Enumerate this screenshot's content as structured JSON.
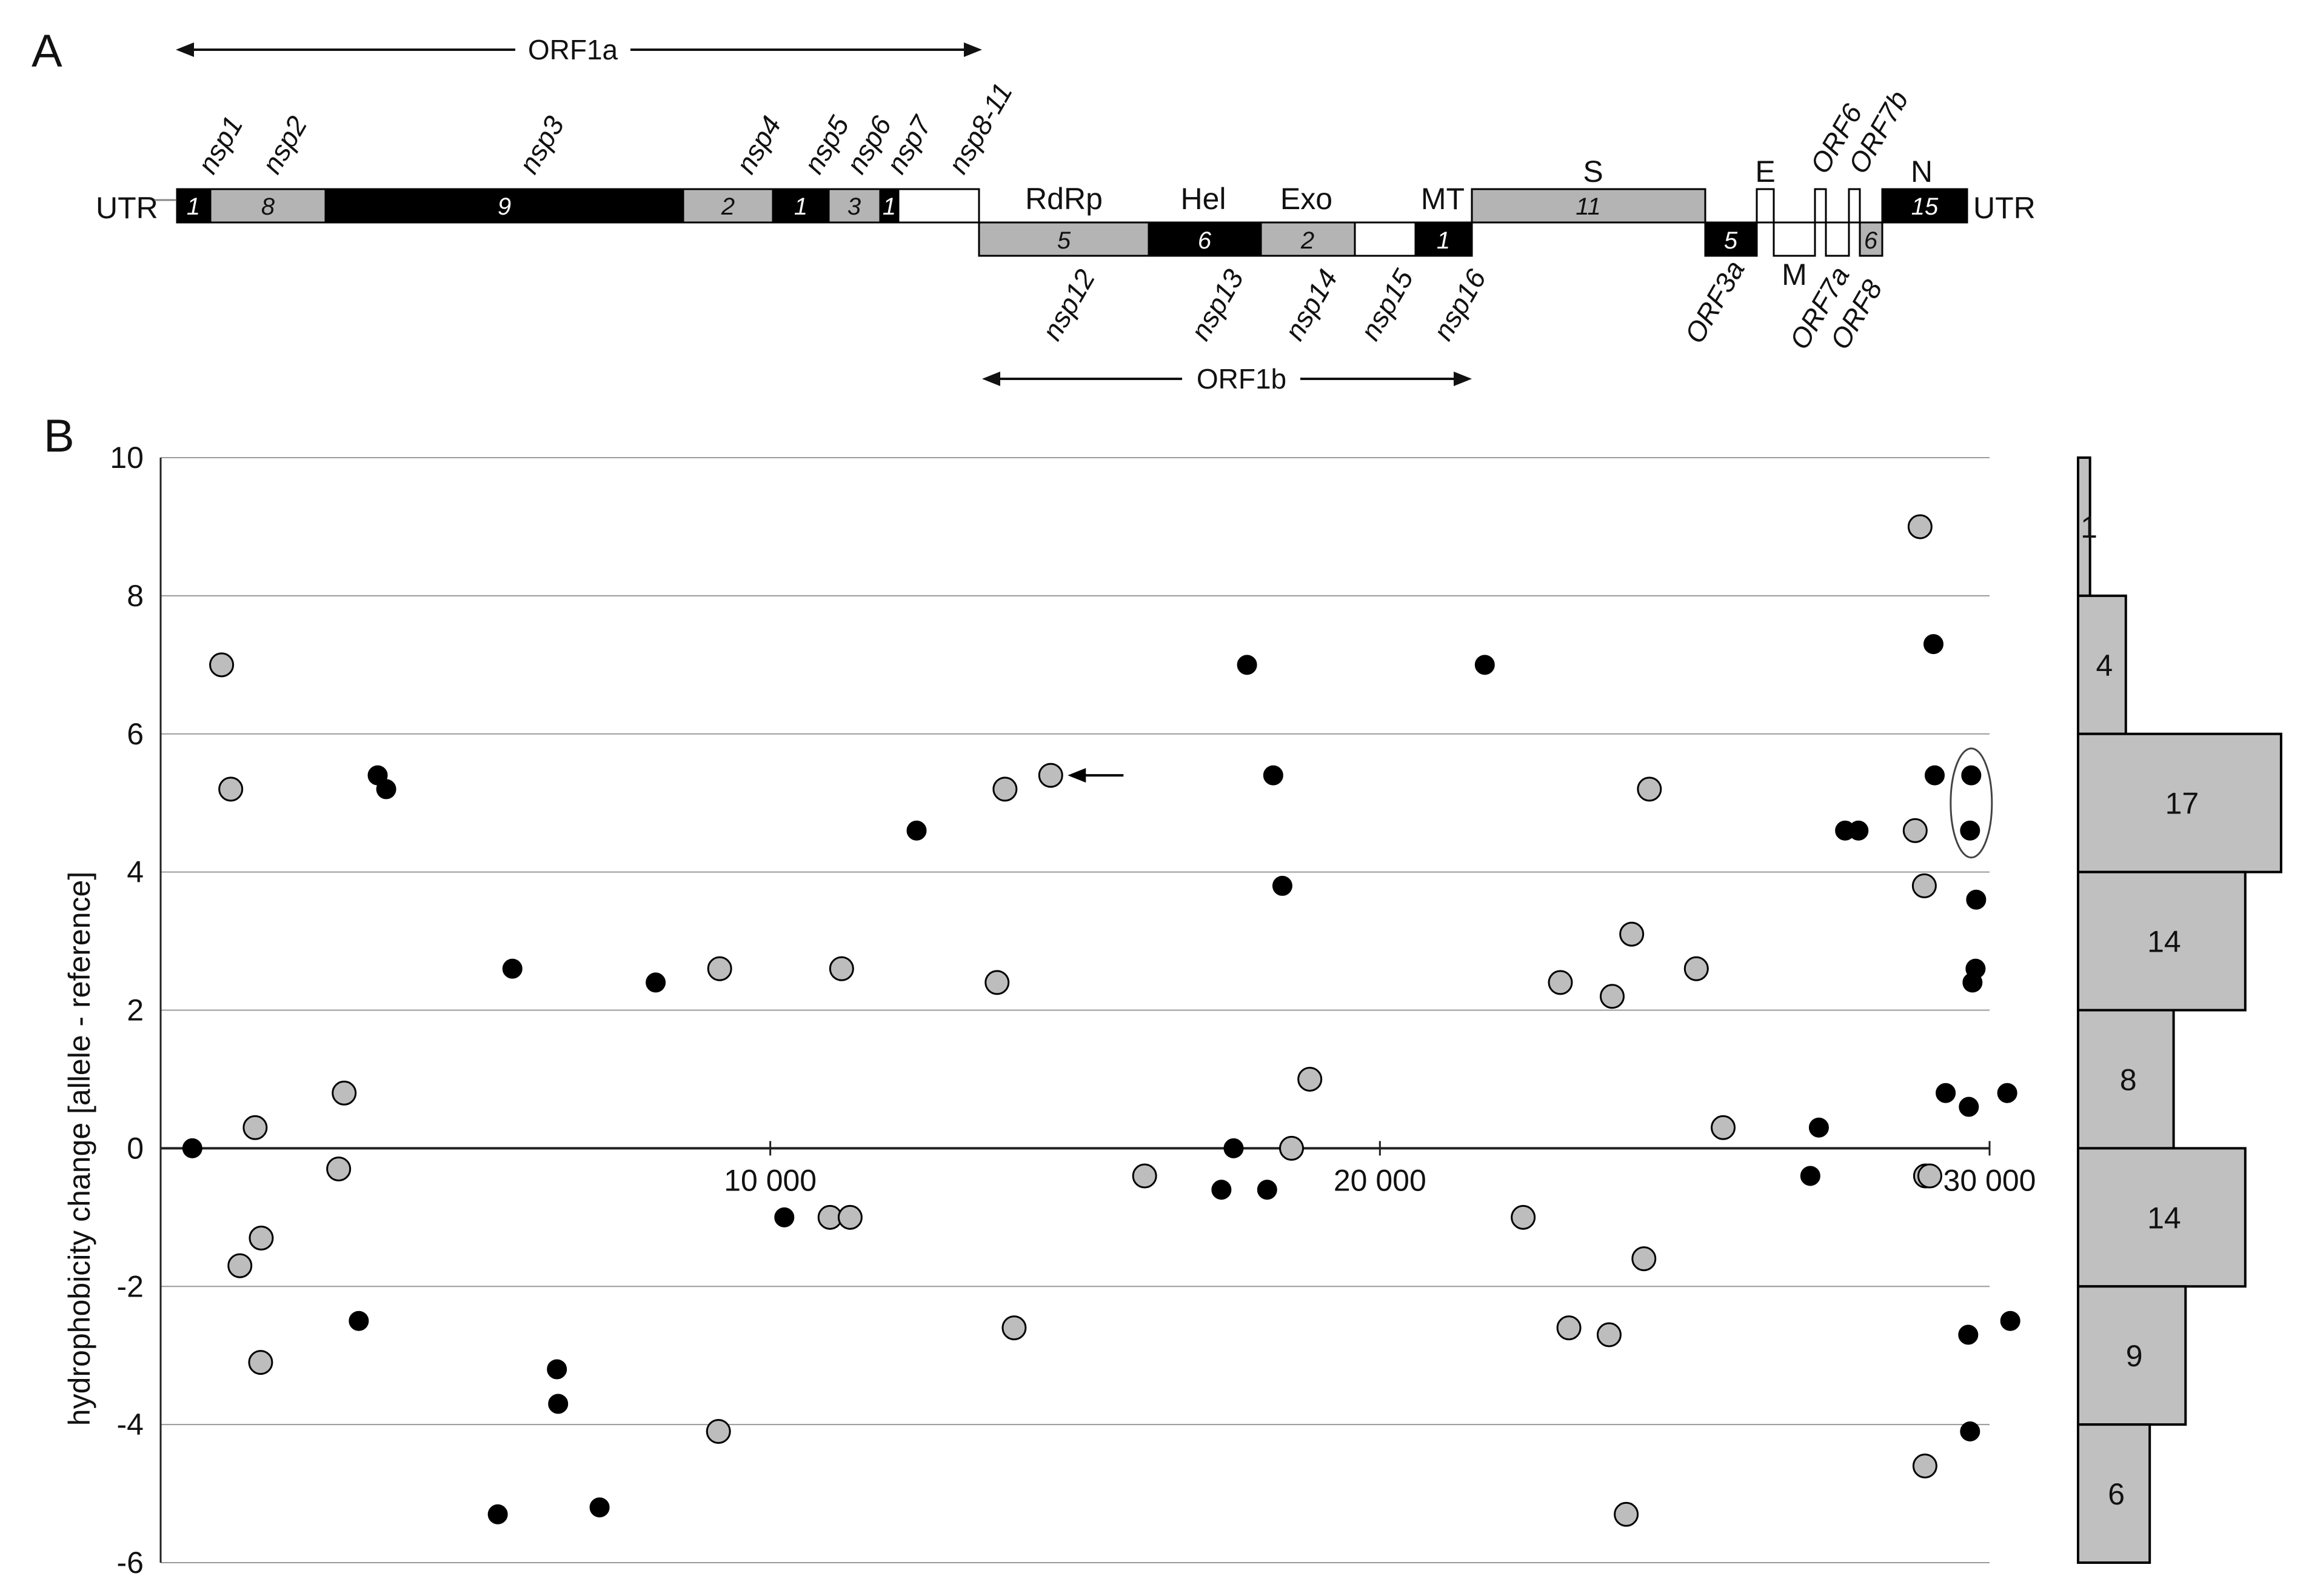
{
  "panel_a": {
    "label": "A",
    "utr_left": "UTR",
    "utr_right": "UTR",
    "orf1a": "ORF1a",
    "orf1b": "ORF1b",
    "segments_top": [
      {
        "name": "nsp1",
        "count": "1",
        "fill": "#000000"
      },
      {
        "name": "nsp2",
        "count": "8",
        "fill": "#b4b4b4"
      },
      {
        "name": "nsp3",
        "count": "9",
        "fill": "#000000"
      },
      {
        "name": "nsp4",
        "count": "2",
        "fill": "#b4b4b4"
      },
      {
        "name": "nsp5",
        "count": "1",
        "fill": "#000000"
      },
      {
        "name": "nsp6",
        "count": "3",
        "fill": "#b4b4b4"
      },
      {
        "name": "nsp7",
        "count": "1",
        "fill": "#000000"
      },
      {
        "name": "nsp8-11",
        "count": "",
        "fill": "#ffffff"
      }
    ],
    "segments_bottom": [
      {
        "name": "nsp12",
        "domain": "RdRp",
        "count": "5",
        "fill": "#b4b4b4"
      },
      {
        "name": "nsp13",
        "domain": "Hel",
        "count": "6",
        "fill": "#000000"
      },
      {
        "name": "nsp14",
        "domain": "Exo",
        "count": "2",
        "fill": "#b4b4b4"
      },
      {
        "name": "nsp15",
        "domain": "",
        "count": "",
        "fill": "#ffffff"
      },
      {
        "name": "nsp16",
        "domain": "MT",
        "count": "1",
        "fill": "#000000"
      }
    ],
    "structural": [
      {
        "name": "S",
        "count": "11",
        "fill": "#b4b4b4"
      },
      {
        "name": "ORF3a",
        "count": "5",
        "fill": "#000000"
      },
      {
        "name": "E",
        "count": "",
        "fill": "#ffffff"
      },
      {
        "name": "M",
        "count": "",
        "fill": "#ffffff"
      },
      {
        "name": "ORF6",
        "count": "",
        "fill": "#ffffff"
      },
      {
        "name": "ORF7a",
        "count": "",
        "fill": "#ffffff"
      },
      {
        "name": "ORF7b",
        "count": "",
        "fill": "#ffffff"
      },
      {
        "name": "ORF8",
        "count": "6",
        "fill": "#b4b4b4"
      },
      {
        "name": "N",
        "count": "15",
        "fill": "#000000"
      }
    ]
  },
  "panel_b": {
    "label": "B"
  },
  "colors": {
    "black_point": "#000000",
    "grey_point": "#bdbdbd",
    "bar": "#c0c0c0",
    "grid": "#9a9a9a"
  },
  "chart_data": {
    "type": "scatter",
    "ylabel": "hydrophobicity change [allele - reference]",
    "xlabel": "",
    "xlim": [
      0,
      30000
    ],
    "ylim": [
      -6,
      10
    ],
    "x_ticks": [
      10000,
      20000,
      30000
    ],
    "x_tick_labels": [
      "10 000",
      "20 000",
      "30 000"
    ],
    "y_ticks": [
      10,
      8,
      6,
      4,
      2,
      0,
      -2,
      -4,
      -6
    ],
    "series": [
      {
        "name": "black",
        "points": [
          [
            520,
            0
          ],
          [
            3250,
            -2.5
          ],
          [
            3560,
            5.4
          ],
          [
            3700,
            5.2
          ],
          [
            5530,
            -5.3
          ],
          [
            5770,
            2.6
          ],
          [
            6500,
            -3.2
          ],
          [
            6520,
            -3.7
          ],
          [
            7200,
            -5.2
          ],
          [
            8120,
            2.4
          ],
          [
            10230,
            -1
          ],
          [
            12400,
            4.6
          ],
          [
            17400,
            -0.6
          ],
          [
            17600,
            0
          ],
          [
            17820,
            7
          ],
          [
            18150,
            -0.6
          ],
          [
            18250,
            5.4
          ],
          [
            18400,
            3.8
          ],
          [
            21720,
            7
          ],
          [
            27060,
            -0.4
          ],
          [
            27200,
            0.3
          ],
          [
            27630,
            4.6
          ],
          [
            27850,
            4.6
          ],
          [
            29080,
            7.3
          ],
          [
            29100,
            5.4
          ],
          [
            29280,
            0.8
          ],
          [
            29660,
            0.6
          ],
          [
            29700,
            5.4
          ],
          [
            29680,
            4.6
          ],
          [
            29650,
            -2.7
          ],
          [
            29680,
            -4.1
          ],
          [
            29780,
            3.6
          ],
          [
            29770,
            2.6
          ],
          [
            29720,
            2.4
          ],
          [
            30290,
            0.8
          ],
          [
            30340,
            -2.5
          ]
        ]
      },
      {
        "name": "grey",
        "points": [
          [
            1000,
            7
          ],
          [
            1150,
            5.2
          ],
          [
            1300,
            -1.7
          ],
          [
            1550,
            0.3
          ],
          [
            1640,
            -3.1
          ],
          [
            1650,
            -1.3
          ],
          [
            2920,
            -0.3
          ],
          [
            3010,
            0.8
          ],
          [
            9170,
            2.6
          ],
          [
            9150,
            -4.1
          ],
          [
            10980,
            -1
          ],
          [
            11170,
            2.6
          ],
          [
            11310,
            -1
          ],
          [
            13720,
            2.4
          ],
          [
            13850,
            5.2
          ],
          [
            14000,
            -2.6
          ],
          [
            14600,
            5.4
          ],
          [
            16140,
            -0.4
          ],
          [
            18550,
            0
          ],
          [
            18850,
            1
          ],
          [
            22350,
            -1
          ],
          [
            22960,
            2.4
          ],
          [
            23100,
            -2.6
          ],
          [
            23760,
            -2.7
          ],
          [
            23810,
            2.2
          ],
          [
            24040,
            -5.3
          ],
          [
            24130,
            3.1
          ],
          [
            24330,
            -1.6
          ],
          [
            24420,
            5.2
          ],
          [
            25190,
            2.6
          ],
          [
            25630,
            0.3
          ],
          [
            28780,
            4.6
          ],
          [
            28860,
            9
          ],
          [
            28930,
            3.8
          ],
          [
            28950,
            -0.4
          ],
          [
            29020,
            -0.4
          ],
          [
            28940,
            -4.6
          ]
        ]
      }
    ],
    "annotations": [
      "arrow pointing at grey point near 14600, 5.4",
      "ellipse around two black points near 29700, 4.6-5.4"
    ],
    "histogram": {
      "bins": [
        [
          8,
          10
        ],
        [
          6,
          8
        ],
        [
          4,
          6
        ],
        [
          2,
          4
        ],
        [
          0,
          2
        ],
        [
          -2,
          0
        ],
        [
          -4,
          -2
        ],
        [
          -6,
          -4
        ]
      ],
      "counts": [
        1,
        4,
        17,
        14,
        8,
        14,
        9,
        6
      ]
    }
  }
}
